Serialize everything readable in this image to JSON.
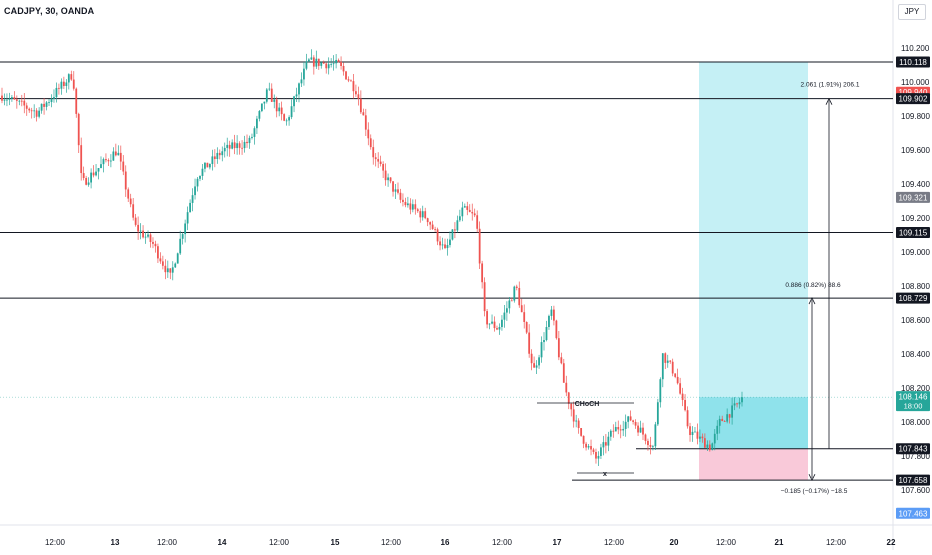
{
  "header": {
    "symbol": "CADJPY, 30, OANDA",
    "currency": "JPY"
  },
  "chart_data": {
    "type": "candlestick",
    "symbol": "CADJPY",
    "interval": "30",
    "source": "OANDA",
    "ylim": [
      107.45,
      110.25
    ],
    "y_ticks": [
      110.2,
      110.0,
      109.8,
      109.6,
      109.4,
      109.2,
      109.0,
      108.8,
      108.6,
      108.4,
      108.2,
      108.0,
      107.8,
      107.6
    ],
    "x_ticks": [
      "12:00",
      "13",
      "12:00",
      "14",
      "12:00",
      "15",
      "12:00",
      "16",
      "12:00",
      "17",
      "12:00",
      "20",
      "12:00",
      "21",
      "12:00",
      "22"
    ],
    "horizontal_levels": [
      110.118,
      109.902,
      109.115,
      108.729,
      107.843,
      107.658
    ],
    "price_badges": [
      {
        "value": "110.118",
        "style": "dark"
      },
      {
        "value": "109.940",
        "style": "red"
      },
      {
        "value": "109.902",
        "style": "dark"
      },
      {
        "value": "109.321",
        "style": "gray"
      },
      {
        "value": "109.115",
        "style": "dark"
      },
      {
        "value": "108.729",
        "style": "dark"
      },
      {
        "value": "108.146",
        "sub": "18:00",
        "style": "green"
      },
      {
        "value": "107.843",
        "style": "dark"
      },
      {
        "value": "107.658",
        "style": "dark"
      },
      {
        "value": "107.463",
        "style": "blue"
      }
    ],
    "current_price": 108.146,
    "annotations": {
      "choch_label": "CHoCH",
      "x_label": "x",
      "target1_label": "0.886 (0.82%) 88.6",
      "target2_label": "2.061 (1.91%) 206.1",
      "stop_label": "−0.185 (−0.17%) −18.5"
    },
    "position": {
      "entry": 107.843,
      "stop": 107.658,
      "target": 110.118
    },
    "anchors": [
      [
        0,
        109.92
      ],
      [
        0.04,
        109.82
      ],
      [
        0.08,
        110.05
      ],
      [
        0.09,
        109.4
      ],
      [
        0.13,
        109.6
      ],
      [
        0.15,
        109.15
      ],
      [
        0.17,
        109.05
      ],
      [
        0.19,
        108.85
      ],
      [
        0.22,
        109.45
      ],
      [
        0.25,
        109.6
      ],
      [
        0.28,
        109.65
      ],
      [
        0.3,
        109.95
      ],
      [
        0.32,
        109.75
      ],
      [
        0.345,
        110.12
      ],
      [
        0.38,
        110.1
      ],
      [
        0.4,
        109.95
      ],
      [
        0.42,
        109.55
      ],
      [
        0.45,
        109.3
      ],
      [
        0.48,
        109.2
      ],
      [
        0.5,
        109.0
      ],
      [
        0.52,
        109.25
      ],
      [
        0.535,
        109.2
      ],
      [
        0.545,
        108.6
      ],
      [
        0.56,
        108.55
      ],
      [
        0.58,
        108.8
      ],
      [
        0.6,
        108.3
      ],
      [
        0.62,
        108.65
      ],
      [
        0.635,
        108.2
      ],
      [
        0.65,
        107.95
      ],
      [
        0.67,
        107.78
      ],
      [
        0.69,
        107.95
      ],
      [
        0.71,
        108.02
      ],
      [
        0.735,
        107.85
      ],
      [
        0.745,
        108.4
      ],
      [
        0.76,
        108.28
      ],
      [
        0.775,
        107.95
      ],
      [
        0.8,
        107.85
      ],
      [
        0.81,
        108.0
      ],
      [
        0.83,
        108.1
      ],
      [
        0.835,
        108.14
      ]
    ]
  }
}
